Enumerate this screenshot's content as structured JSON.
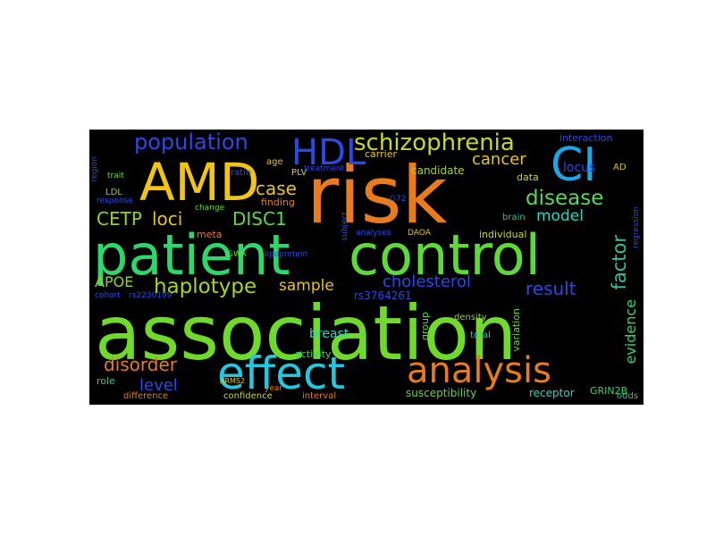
{
  "wordcloud": {
    "words": [
      {
        "text": "association",
        "color": "#6fd92c"
      },
      {
        "text": "patient",
        "color": "#2fd66c"
      },
      {
        "text": "control",
        "color": "#5fd93a"
      },
      {
        "text": "risk",
        "color": "#e87b1e"
      },
      {
        "text": "AMD",
        "color": "#f0c419"
      },
      {
        "text": "effect",
        "color": "#22c8e0"
      },
      {
        "text": "analysis",
        "color": "#e87b1e"
      },
      {
        "text": "CI",
        "color": "#1ea5e8"
      },
      {
        "text": "HDL",
        "color": "#2a49e6"
      },
      {
        "text": "schizophrenia",
        "color": "#c7d82a"
      },
      {
        "text": "population",
        "color": "#2a49e6"
      },
      {
        "text": "haplotype",
        "color": "#a8d42a"
      },
      {
        "text": "disease",
        "color": "#58d95f"
      },
      {
        "text": "factor",
        "color": "#2fc4a0"
      },
      {
        "text": "disorder",
        "color": "#e87b1e"
      },
      {
        "text": "cholesterol",
        "color": "#2a49e6"
      },
      {
        "text": "result",
        "color": "#2a49e6"
      },
      {
        "text": "case",
        "color": "#e8c41e"
      },
      {
        "text": "loci",
        "color": "#e8c41e"
      },
      {
        "text": "CETP",
        "color": "#8fd62a"
      },
      {
        "text": "DISC1",
        "color": "#5fd93a"
      },
      {
        "text": "cancer",
        "color": "#e8c41e"
      },
      {
        "text": "model",
        "color": "#2ad6c0"
      },
      {
        "text": "sample",
        "color": "#e8c41e"
      },
      {
        "text": "APOE",
        "color": "#8fd62a"
      },
      {
        "text": "level",
        "color": "#2a49e6"
      },
      {
        "text": "evidence",
        "color": "#2fd66c"
      },
      {
        "text": "locus",
        "color": "#2a49e6"
      },
      {
        "text": "breast",
        "color": "#2ad6c0"
      },
      {
        "text": "candidate",
        "color": "#a8d42a"
      },
      {
        "text": "susceptibility",
        "color": "#5fd93a"
      },
      {
        "text": "receptor",
        "color": "#2ad6c0"
      },
      {
        "text": "rs3764261",
        "color": "#2a49e6"
      },
      {
        "text": "interaction",
        "color": "#2a49e6"
      },
      {
        "text": "activity",
        "color": "#2fd66c"
      },
      {
        "text": "group",
        "color": "#5fd93a"
      },
      {
        "text": "variation",
        "color": "#5fd93a"
      },
      {
        "text": "individual",
        "color": "#c7d82a"
      },
      {
        "text": "finding",
        "color": "#e87b1e"
      },
      {
        "text": "carrier",
        "color": "#e8c41e"
      },
      {
        "text": "data",
        "color": "#c7d82a"
      },
      {
        "text": "brain",
        "color": "#2fc4a0"
      },
      {
        "text": "density",
        "color": "#8fd62a"
      },
      {
        "text": "total",
        "color": "#2ad6c0"
      },
      {
        "text": "role",
        "color": "#2fc4a0"
      },
      {
        "text": "difference",
        "color": "#e87b1e"
      },
      {
        "text": "confidence",
        "color": "#c7d82a"
      },
      {
        "text": "interval",
        "color": "#e87b1e"
      },
      {
        "text": "odds",
        "color": "#2fc4a0"
      },
      {
        "text": "GRIN2B",
        "color": "#2fd66c"
      },
      {
        "text": "meta",
        "color": "#e87b1e"
      },
      {
        "text": "age",
        "color": "#e8c41e"
      },
      {
        "text": "ratio",
        "color": "#2a49e6"
      },
      {
        "text": "PLV",
        "color": "#e8c41e"
      },
      {
        "text": "LDL",
        "color": "#8fd62a"
      },
      {
        "text": "response",
        "color": "#2a49e6"
      },
      {
        "text": "trait",
        "color": "#5fd93a"
      },
      {
        "text": "region",
        "color": "#2a49e6"
      },
      {
        "text": "analyses",
        "color": "#2a49e6"
      },
      {
        "text": "DAOA",
        "color": "#e8c41e"
      },
      {
        "text": "G72",
        "color": "#2a49e6"
      },
      {
        "text": "cohort",
        "color": "#2a49e6"
      },
      {
        "text": "rs2230199",
        "color": "#2a49e6"
      },
      {
        "text": "ARMS2",
        "color": "#e8c41e"
      },
      {
        "text": "GWA",
        "color": "#5fd93a"
      },
      {
        "text": "year",
        "color": "#e87b1e"
      },
      {
        "text": "change",
        "color": "#5fd93a"
      },
      {
        "text": "lipoprotein",
        "color": "#2a49e6"
      },
      {
        "text": "subject",
        "color": "#2a49e6"
      },
      {
        "text": "regression",
        "color": "#2a49e6"
      },
      {
        "text": "treatment",
        "color": "#2a49e6"
      },
      {
        "text": "AD",
        "color": "#e8c41e"
      }
    ]
  }
}
